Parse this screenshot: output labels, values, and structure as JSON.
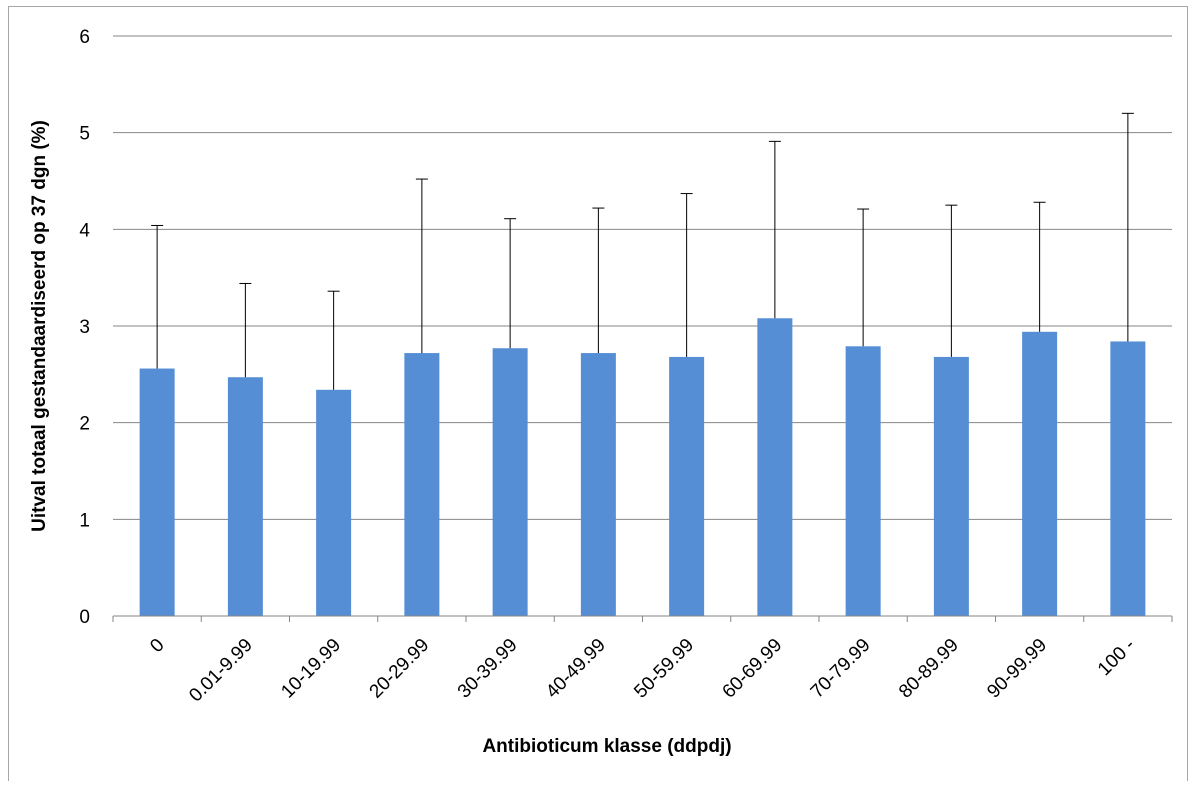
{
  "chart_data": {
    "type": "bar",
    "title": "",
    "xlabel": "Antibioticum klasse (ddpdj)",
    "ylabel": "Uitval totaal gestandaardiseerd op 37 dgn (%)",
    "ylim": [
      0,
      6
    ],
    "yticks": [
      "0",
      "1",
      "2",
      "3",
      "4",
      "5",
      "6"
    ],
    "grid": true,
    "legend": "none",
    "bar_color": "#558ed5",
    "categories": [
      "0",
      "0.01-9.99",
      "10-19.99",
      "20-29.99",
      "30-39.99",
      "40-49.99",
      "50-59.99",
      "60-69.99",
      "70-79.99",
      "80-89.99",
      "90-99.99",
      "100 -"
    ],
    "values": [
      2.56,
      2.47,
      2.34,
      2.72,
      2.77,
      2.72,
      2.68,
      3.08,
      2.79,
      2.68,
      2.94,
      2.84
    ],
    "error_upper": [
      4.04,
      3.44,
      3.36,
      4.52,
      4.11,
      4.22,
      4.37,
      4.91,
      4.21,
      4.25,
      4.28,
      5.2
    ]
  }
}
